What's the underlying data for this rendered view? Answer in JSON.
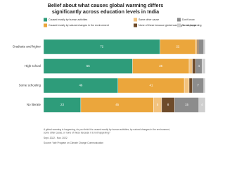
{
  "chart_data": {
    "type": "stacked-bar-horizontal",
    "title": "Belief about what causes global warming differs significantly across education levels in India",
    "categories": [
      "Graduate and higher",
      "High school",
      "Some schooling",
      "No literate"
    ],
    "series": [
      {
        "name": "Caused mostly by human activities",
        "color": "#2e9c7a",
        "values": [
          72,
          55,
          46,
          23
        ]
      },
      {
        "name": "Caused mostly by natural changes in the environment",
        "color": "#eba63c",
        "values": [
          22,
          35,
          41,
          45
        ]
      },
      {
        "name": "Some other cause",
        "color": "#f2c27e",
        "values": [
          1,
          2,
          3,
          5
        ]
      },
      {
        "name": "None of these because global warming is not happening",
        "color": "#6e4b2a",
        "values": [
          1,
          2,
          2,
          8
        ]
      },
      {
        "name": "Don't know",
        "color": "#8c8c8c",
        "values": [
          3,
          4,
          7,
          15
        ]
      },
      {
        "name": "No response",
        "color": "#cfcfcf",
        "values": [
          1,
          2,
          1,
          4
        ]
      }
    ],
    "footnote": "A global warming is happening, do you think it is caused mostly by human activities, by natural changes in the environment, some other cause, or none of these because it is not happening?",
    "dates": "Sept. 2022 - Nov. 2022",
    "source": "Source: Yale Program on Climate Change Communication"
  }
}
